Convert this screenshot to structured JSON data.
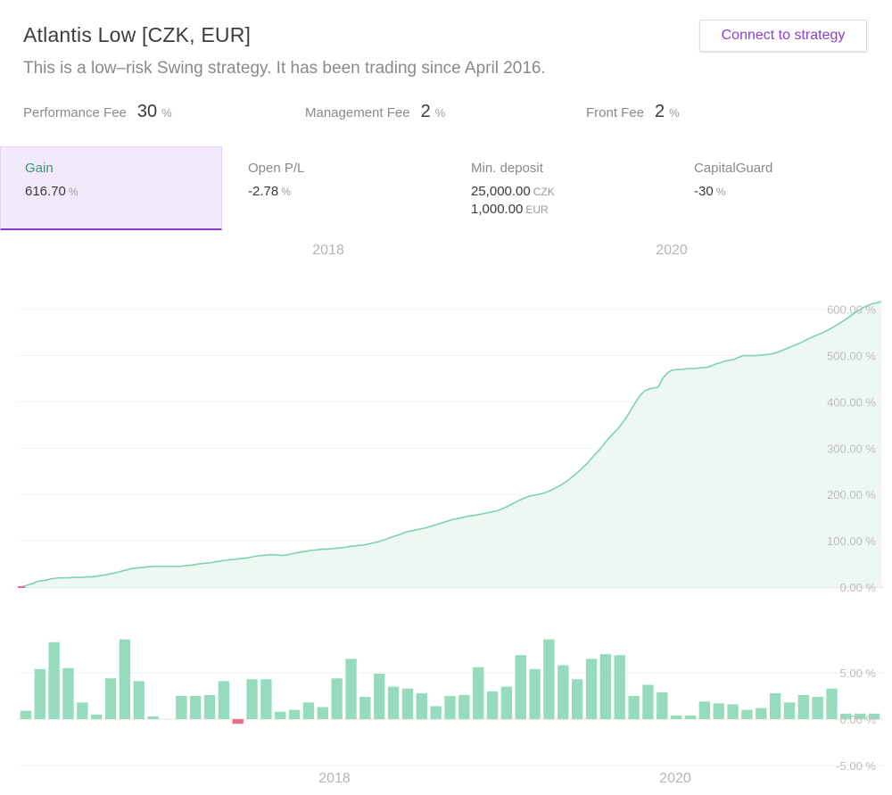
{
  "header": {
    "title": "Atlantis Low [CZK, EUR]",
    "subtitle": "This is a low–risk Swing strategy. It has been trading since April 2016.",
    "connect_label": "Connect to strategy"
  },
  "fees": [
    {
      "label": "Performance Fee",
      "value": "30",
      "unit": "%"
    },
    {
      "label": "Management Fee",
      "value": "2",
      "unit": "%"
    },
    {
      "label": "Front Fee",
      "value": "2",
      "unit": "%"
    }
  ],
  "stats": [
    {
      "label": "Gain",
      "lines": [
        {
          "value": "616.70",
          "unit": "%"
        }
      ],
      "active": true
    },
    {
      "label": "Open P/L",
      "lines": [
        {
          "value": "-2.78",
          "unit": "%"
        }
      ],
      "active": false
    },
    {
      "label": "Min. deposit",
      "lines": [
        {
          "value": "25,000.00",
          "unit": "CZK"
        },
        {
          "value": "1,000.00",
          "unit": "EUR"
        }
      ],
      "active": false
    },
    {
      "label": "CapitalGuard",
      "lines": [
        {
          "value": "-30",
          "unit": "%"
        }
      ],
      "active": false
    }
  ],
  "colors": {
    "accent": "#8a3fd1",
    "gain_line": "#7dd3b0",
    "gain_fill": "#eef8f3",
    "bar_positive": "#96dbbb",
    "bar_negative": "#ea6a8a"
  },
  "chart_data": [
    {
      "type": "area",
      "series": [
        {
          "name": "Gain",
          "values": [
            0,
            2,
            5,
            8,
            12,
            14,
            15,
            18,
            19,
            20,
            20,
            20,
            21,
            21,
            21,
            22,
            22,
            23,
            25,
            26,
            28,
            30,
            32,
            35,
            37,
            40,
            41,
            42,
            43,
            44,
            45,
            45,
            45,
            45,
            45,
            45,
            45,
            46,
            47,
            48,
            50,
            51,
            52,
            53,
            55,
            56,
            58,
            59,
            60,
            61,
            62,
            63,
            65,
            67,
            68,
            69,
            70,
            70,
            69,
            68,
            70,
            72,
            74,
            76,
            77,
            79,
            80,
            81,
            82,
            82,
            83,
            84,
            85,
            86,
            88,
            89,
            90,
            91,
            93,
            95,
            97,
            100,
            103,
            107,
            110,
            113,
            117,
            120,
            122,
            124,
            126,
            128,
            131,
            134,
            137,
            140,
            143,
            146,
            148,
            150,
            152,
            154,
            155,
            157,
            159,
            161,
            163,
            165,
            169,
            173,
            178,
            183,
            188,
            192,
            196,
            198,
            200,
            202,
            205,
            209,
            214,
            219,
            225,
            232,
            240,
            248,
            257,
            266,
            277,
            288,
            298,
            310,
            322,
            332,
            342,
            354,
            368,
            384,
            400,
            414,
            424,
            428,
            430,
            432,
            450,
            462,
            468,
            470,
            470,
            471,
            472,
            472,
            473,
            474,
            475,
            478,
            482,
            485,
            488,
            490,
            492,
            496,
            500,
            500,
            500,
            500,
            501,
            502,
            503,
            505,
            508,
            512,
            516,
            520,
            524,
            528,
            533,
            538,
            542,
            546,
            550,
            555,
            560,
            566,
            572,
            578,
            585,
            592,
            598,
            604,
            608,
            612,
            614,
            616.7
          ]
        }
      ],
      "ylim": [
        0,
        616.7
      ],
      "y_ticks": [
        "600.00 %",
        "500.00 %",
        "400.00 %",
        "300.00 %",
        "200.00 %",
        "100.00 %",
        "0.00 %"
      ],
      "top_ticks": [
        "2018",
        "2020"
      ]
    },
    {
      "type": "bar",
      "series": [
        {
          "name": "Monthly",
          "values": [
            0.9,
            5.4,
            8.3,
            5.5,
            1.8,
            0.5,
            4.4,
            8.6,
            4.1,
            0.3,
            0,
            2.5,
            2.5,
            2.6,
            4.1,
            -0.5,
            4.3,
            4.3,
            0.8,
            1,
            1.8,
            1.3,
            4.4,
            6.5,
            2.4,
            4.9,
            3.5,
            3.3,
            2.8,
            1.4,
            2.5,
            2.6,
            5.6,
            3,
            3.5,
            6.9,
            5.4,
            8.6,
            5.8,
            4.3,
            6.5,
            7,
            6.9,
            2.5,
            3.7,
            2.9,
            0.4,
            0.4,
            1.9,
            1.7,
            1.6,
            1,
            1.2,
            2.8,
            1.8,
            2.6,
            2.4,
            3.3,
            0.6,
            0.6,
            0.6
          ]
        }
      ],
      "ylim": [
        -5,
        9
      ],
      "y_ticks": [
        "5.00 %",
        "0.00 %",
        "-5.00 %"
      ],
      "bottom_ticks": [
        "2018",
        "2020"
      ]
    }
  ]
}
